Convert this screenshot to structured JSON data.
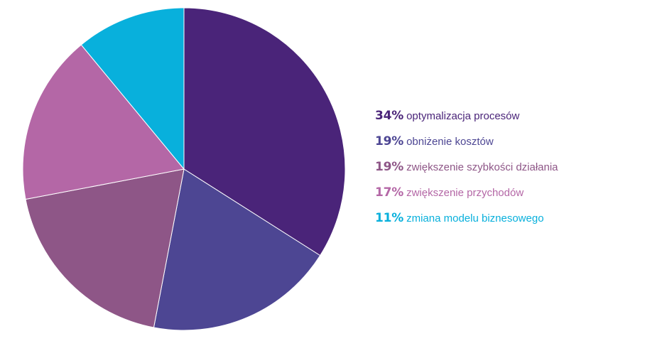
{
  "chart_data": {
    "type": "pie",
    "slices": [
      {
        "value": 34,
        "percent_label": "34%",
        "label": "optymalizacja procesów",
        "color": "#4a2479",
        "text_color": "#4a2479"
      },
      {
        "value": 19,
        "percent_label": "19%",
        "label": "obniżenie kosztów",
        "color": "#4d4693",
        "text_color": "#4d4693"
      },
      {
        "value": 19,
        "percent_label": "19%",
        "label": "zwiększenie szybkości działania",
        "color": "#8e5687",
        "text_color": "#8e5687"
      },
      {
        "value": 17,
        "percent_label": "17%",
        "label": "zwiększenie przychodów",
        "color": "#b467a6",
        "text_color": "#b467a6"
      },
      {
        "value": 11,
        "percent_label": "11%",
        "label": "zmiana modelu biznesowego",
        "color": "#08b0dc",
        "text_color": "#08b0dc"
      }
    ],
    "start": "top",
    "direction": "clockwise",
    "legend_position": "right"
  }
}
